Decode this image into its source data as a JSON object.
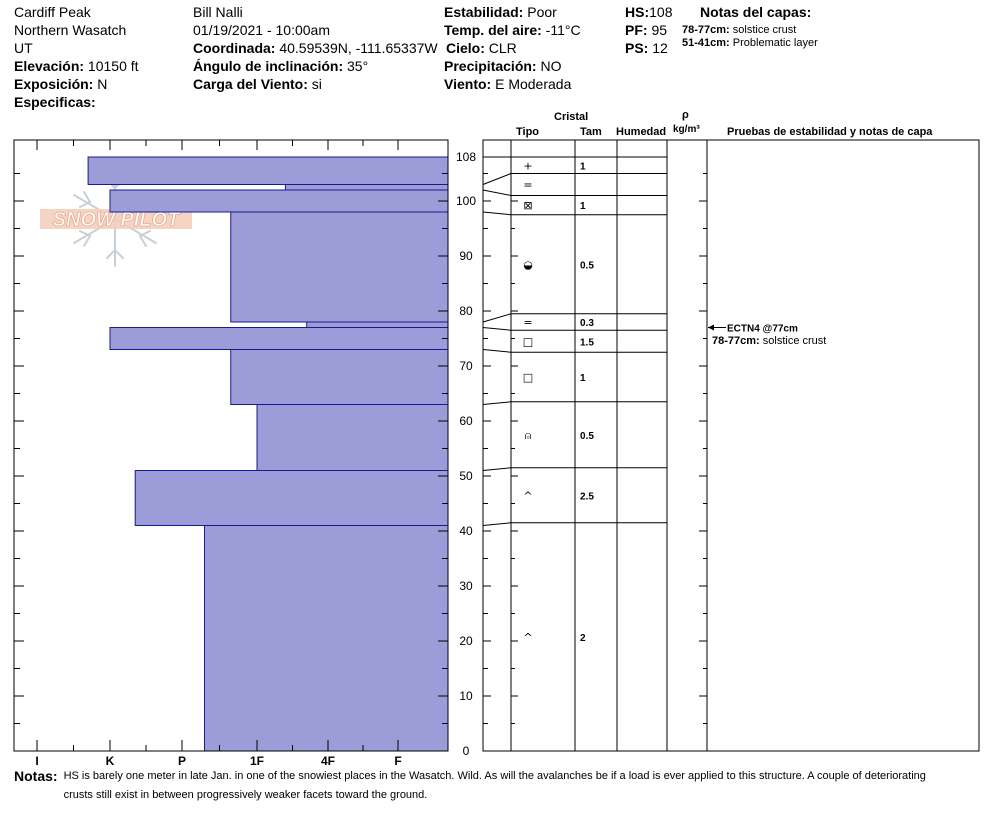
{
  "header": {
    "location": "Cardiff Peak",
    "range": "Northern Wasatch",
    "state": "UT",
    "observer": "Bill Nalli",
    "datetime": "01/19/2021 - 10:00am",
    "fields": {
      "elevation": {
        "label": "Elevación:",
        "value": "10150 ft"
      },
      "aspect": {
        "label": "Exposición:",
        "value": "N"
      },
      "specifics": {
        "label": "Especificas:",
        "value": ""
      },
      "coordinate": {
        "label": "Coordinada:",
        "value": "40.59539N, -111.65337W"
      },
      "slope": {
        "label": "Ángulo de inclinación:",
        "value": "35°"
      },
      "wind_load": {
        "label": "Carga del Viento:",
        "value": "si"
      },
      "stability": {
        "label": "Estabilidad:",
        "value": "Poor"
      },
      "air_temp": {
        "label": "Temp. del aire:",
        "value": "-11°C"
      },
      "sky": {
        "label": "Cielo:",
        "value": "CLR"
      },
      "precip": {
        "label": "Precipitación:",
        "value": "NO"
      },
      "wind": {
        "label": "Viento:",
        "value": "E Moderada"
      },
      "hs": {
        "label": "HS:",
        "value": "108"
      },
      "pf": {
        "label": "PF:",
        "value": "95"
      },
      "ps": {
        "label": "PS:",
        "value": "12"
      }
    },
    "layer_notes": {
      "title": "Notas del capas:",
      "items": [
        {
          "range": "78-77cm:",
          "text": "solstice crust"
        },
        {
          "range": "51-41cm:",
          "text": "Problematic layer"
        }
      ]
    }
  },
  "logo": {
    "text": "SNOW PILOT"
  },
  "columns": {
    "cristal": "Cristal",
    "tipo": "Tipo",
    "tam": "Tam",
    "humedad": "Humedad",
    "rho": "ρ",
    "density_unit": "kg/m³",
    "tests": "Pruebas de estabilidad y notas de capa"
  },
  "chart_data": {
    "type": "bar",
    "orientation": "horizontal",
    "x_categories": [
      "I",
      "K",
      "P",
      "1F",
      "4F",
      "F"
    ],
    "ylim": [
      0,
      108
    ],
    "y_ticks": [
      0,
      10,
      20,
      30,
      40,
      50,
      60,
      70,
      80,
      90,
      100,
      108
    ],
    "layers": [
      {
        "top": 108,
        "bottom": 103,
        "hardness": 0.7
      },
      {
        "top": 103,
        "bottom": 102,
        "hardness": 3.4
      },
      {
        "top": 102,
        "bottom": 98,
        "hardness": 1.0
      },
      {
        "top": 98,
        "bottom": 78,
        "hardness": 2.65
      },
      {
        "top": 78,
        "bottom": 77,
        "hardness": 3.7
      },
      {
        "top": 77,
        "bottom": 73,
        "hardness": 1.0
      },
      {
        "top": 73,
        "bottom": 63,
        "hardness": 2.65
      },
      {
        "top": 63,
        "bottom": 51,
        "hardness": 3.0
      },
      {
        "top": 51,
        "bottom": 41,
        "hardness": 1.35
      },
      {
        "top": 41,
        "bottom": 0,
        "hardness": 2.3
      }
    ]
  },
  "crystal_table": {
    "boundaries": [
      108,
      105,
      101,
      97.5,
      79.5,
      76.5,
      72.5,
      63.5,
      51.5,
      41.5,
      0
    ],
    "rows": [
      {
        "type": "+",
        "size": "1"
      },
      {
        "type": "=",
        "size": ""
      },
      {
        "type": "⊠",
        "size": "1"
      },
      {
        "type": "◒",
        "size": "0.5"
      },
      {
        "type": "=",
        "size": "0.3"
      },
      {
        "type": "□",
        "size": "1.5"
      },
      {
        "type": "□",
        "size": "1"
      },
      {
        "type": "⍝",
        "size": "0.5"
      },
      {
        "type": "^",
        "size": "2.5"
      },
      {
        "type": "^",
        "size": "2"
      }
    ],
    "tests": [
      {
        "depth": 77,
        "text": "ECTN4 @77cm"
      }
    ],
    "layer_notes": [
      {
        "depth": 74,
        "range": "78-77cm:",
        "text": "solstice crust"
      }
    ]
  },
  "notes": {
    "label": "Notas:",
    "text": "HS is barely one meter in late Jan. in one of the snowiest places in the Wasatch. Wild. As will the avalanches be if a load is ever applied to this structure. A couple of deteriorating crusts still exist in between progressively weaker facets toward the ground."
  }
}
